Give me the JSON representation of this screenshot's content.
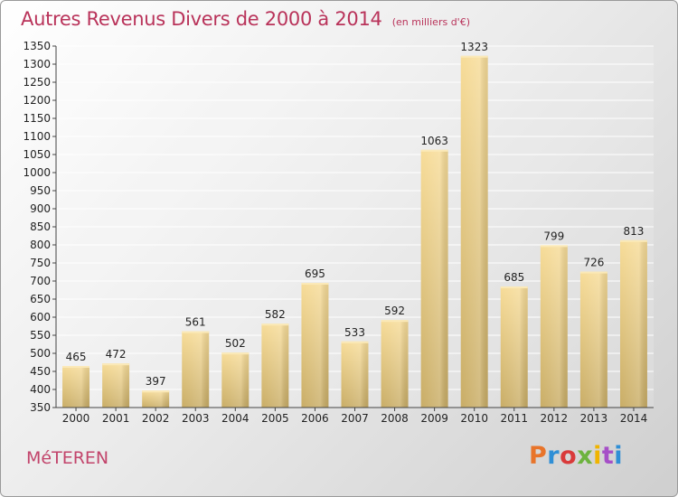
{
  "header": {
    "title": "Autres Revenus Divers de 2000 à 2014",
    "subtitle": "(en milliers d'€)"
  },
  "footer": {
    "place": "MéTEREN",
    "logo_text": "Proxiti",
    "logo_colors": [
      "#e8742a",
      "#2f8fd6",
      "#d93a3a",
      "#6db33f",
      "#f0b400",
      "#a64fc7",
      "#2f8fd6"
    ]
  },
  "chart_data": {
    "type": "bar",
    "categories": [
      "2000",
      "2001",
      "2002",
      "2003",
      "2004",
      "2005",
      "2006",
      "2007",
      "2008",
      "2009",
      "2010",
      "2011",
      "2012",
      "2013",
      "2014"
    ],
    "values": [
      465,
      472,
      397,
      561,
      502,
      582,
      695,
      533,
      592,
      1063,
      1323,
      685,
      799,
      726,
      813
    ],
    "ylim": [
      350,
      1350
    ],
    "ytick_step": 50,
    "grid": true,
    "bar_color": "#e8cc82",
    "title": "Autres Revenus Divers de 2000 à 2014",
    "xlabel": "",
    "ylabel": ""
  }
}
